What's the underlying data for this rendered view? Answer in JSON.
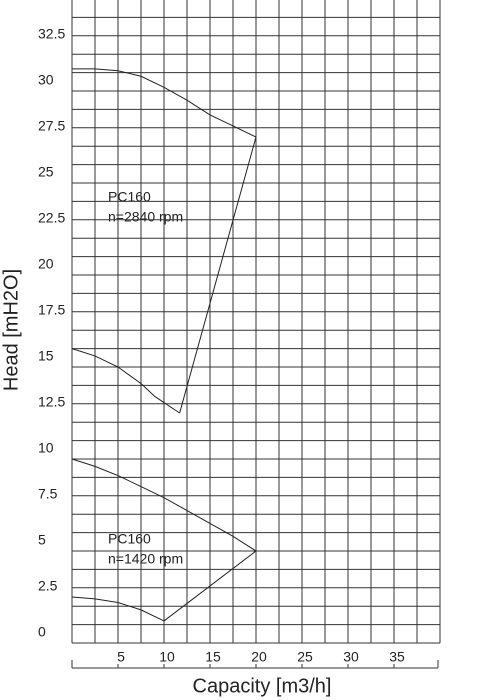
{
  "chart_data": {
    "type": "line",
    "xlabel": "Capacity [m3/h]",
    "ylabel": "Head [mH2O]",
    "annotations": [
      "PC160",
      "n=2840 rpm",
      "PC160",
      "n=1420 rpm"
    ],
    "xlim": [
      0,
      40
    ],
    "ylim": [
      0,
      35
    ],
    "xticks": [
      5,
      10,
      15,
      20,
      25,
      30,
      35
    ],
    "yticks": [
      0,
      2.5,
      5,
      7.5,
      10,
      12.5,
      15,
      17.5,
      20,
      22.5,
      25,
      27.5,
      30,
      32.5
    ],
    "xgrid": [
      0,
      2.5,
      5,
      7.5,
      10,
      12.5,
      15,
      17.5,
      20,
      22.5,
      25,
      27.5,
      30,
      32.5,
      35,
      37.5,
      40
    ],
    "ygrid": [
      0,
      1,
      2,
      3,
      4,
      5,
      6,
      7,
      8,
      9,
      10,
      11,
      12,
      13,
      14,
      15,
      16,
      17,
      18,
      19,
      20,
      21,
      22,
      23,
      24,
      25,
      26,
      27,
      28,
      29,
      30,
      31,
      32,
      33,
      34,
      35
    ],
    "grid": true,
    "series": [
      {
        "color": "#222222",
        "x": [
          0,
          2.5,
          5,
          7.5,
          10,
          12.5,
          15,
          17.5,
          20
        ],
        "values": [
          31.2,
          31.2,
          31.1,
          30.8,
          30.2,
          29.5,
          28.7,
          28.1,
          27.5
        ]
      },
      {
        "color": "#222222",
        "x": [
          20,
          11.7
        ],
        "values": [
          27.5,
          12.5
        ]
      },
      {
        "color": "#222222",
        "x": [
          0,
          2.5,
          5,
          7.5,
          9,
          11.7
        ],
        "values": [
          16,
          15.6,
          15,
          14.1,
          13.4,
          12.5
        ]
      },
      {
        "color": "#222222",
        "x": [
          0,
          2.5,
          5,
          7.5,
          10,
          12.5,
          15,
          17.5,
          20
        ],
        "values": [
          10,
          9.6,
          9.1,
          8.5,
          7.9,
          7.2,
          6.5,
          5.8,
          5
        ]
      },
      {
        "color": "#222222",
        "x": [
          0,
          2.5,
          5,
          7.5,
          10
        ],
        "values": [
          2.5,
          2.4,
          2.2,
          1.8,
          1.2
        ]
      },
      {
        "color": "#222222",
        "x": [
          10,
          20
        ],
        "values": [
          1.2,
          5
        ]
      }
    ]
  }
}
